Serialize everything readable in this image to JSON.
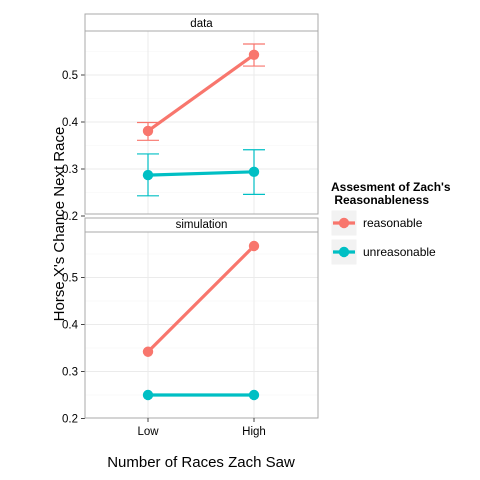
{
  "chart_data": {
    "type": "line",
    "xlabel": "Number of Races Zach Saw",
    "ylabel": "Horse X's Chance Next Race",
    "categories": [
      "Low",
      "High"
    ],
    "yticks": [
      0.2,
      0.3,
      0.4,
      0.5
    ],
    "legend": {
      "title_lines": [
        "Assesment of Zach's",
        " Reasonableness"
      ],
      "position": "right"
    },
    "grid": true,
    "panels": [
      {
        "strip": "data",
        "ylim": [
          0.2,
          0.6
        ],
        "series": [
          {
            "name": "reasonable",
            "color": "#F8766D",
            "values": [
              0.381,
              0.543
            ],
            "error_low": [
              0.361,
              0.519
            ],
            "error_high": [
              0.399,
              0.566
            ]
          },
          {
            "name": "unreasonable",
            "color": "#00BFC4",
            "values": [
              0.287,
              0.294
            ],
            "error_low": [
              0.243,
              0.246
            ],
            "error_high": [
              0.332,
              0.341
            ]
          }
        ]
      },
      {
        "strip": "simulation",
        "ylim": [
          0.2,
          0.6
        ],
        "series": [
          {
            "name": "reasonable",
            "color": "#F8766D",
            "values": [
              0.342,
              0.567
            ]
          },
          {
            "name": "unreasonable",
            "color": "#00BFC4",
            "values": [
              0.25,
              0.25
            ]
          }
        ]
      }
    ]
  }
}
